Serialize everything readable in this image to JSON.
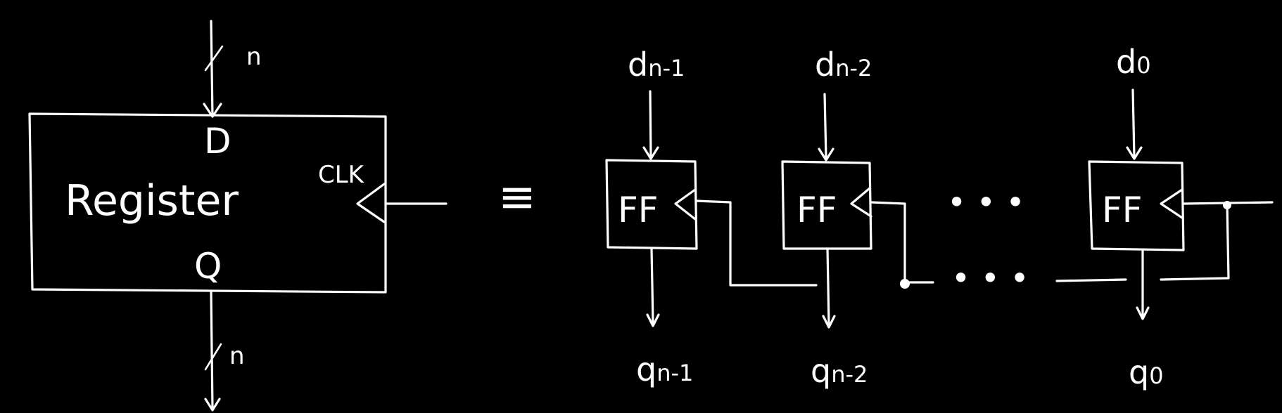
{
  "register": {
    "title": "Register",
    "input_label": "D",
    "output_label": "Q",
    "clock_label": "CLK",
    "input_width": "n",
    "output_width": "n"
  },
  "equivalence_symbol": "≡",
  "flip_flops": [
    {
      "block_label": "FF",
      "input_main": "d",
      "input_sub": "n-1",
      "output_main": "q",
      "output_sub": "n-1"
    },
    {
      "block_label": "FF",
      "input_main": "d",
      "input_sub": "n-2",
      "output_main": "q",
      "output_sub": "n-2"
    },
    {
      "block_label": "FF",
      "input_main": "d",
      "input_sub": "0",
      "output_main": "q",
      "output_sub": "0"
    }
  ],
  "ellipsis": "• • •"
}
